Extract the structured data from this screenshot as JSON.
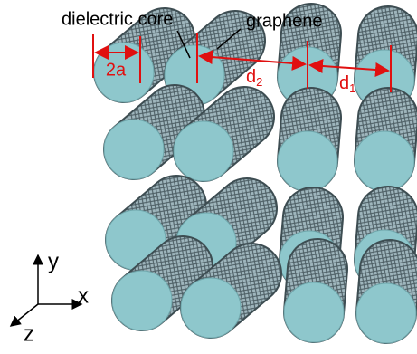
{
  "labels": {
    "core": "dielectric core",
    "shell": "graphene",
    "diameter": "2a",
    "d2": {
      "main": "d",
      "sub": "2"
    },
    "d1": {
      "main": "d",
      "sub": "1"
    }
  },
  "axes": {
    "y": "y",
    "x": "x",
    "z": "z"
  }
}
